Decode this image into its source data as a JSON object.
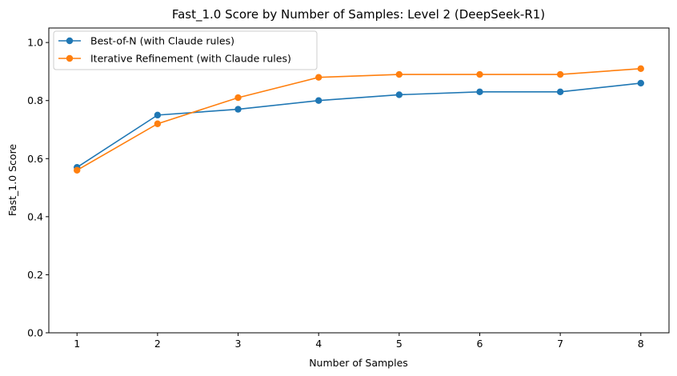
{
  "chart_data": {
    "type": "line",
    "title": "Fast_1.0 Score by Number of Samples: Level 2 (DeepSeek-R1)",
    "xlabel": "Number of Samples",
    "ylabel": "Fast_1.0 Score",
    "x": [
      1,
      2,
      3,
      4,
      5,
      6,
      7,
      8
    ],
    "xlim": [
      0.65,
      8.35
    ],
    "ylim": [
      0.0,
      1.05
    ],
    "x_ticks": [
      "1",
      "2",
      "3",
      "4",
      "5",
      "6",
      "7",
      "8"
    ],
    "y_ticks": [
      "0.0",
      "0.2",
      "0.4",
      "0.6",
      "0.8",
      "1.0"
    ],
    "y_tick_values": [
      0.0,
      0.2,
      0.4,
      0.6,
      0.8,
      1.0
    ],
    "grid": false,
    "legend_position": "top-left",
    "series": [
      {
        "name": "Best-of-N (with Claude rules)",
        "color": "#1f77b4",
        "marker": "circle",
        "values": [
          0.57,
          0.75,
          0.77,
          0.8,
          0.82,
          0.83,
          0.83,
          0.86
        ]
      },
      {
        "name": "Iterative Refinement (with Claude rules)",
        "color": "#ff7f0e",
        "marker": "circle",
        "values": [
          0.56,
          0.72,
          0.81,
          0.88,
          0.89,
          0.89,
          0.89,
          0.91
        ]
      }
    ]
  }
}
